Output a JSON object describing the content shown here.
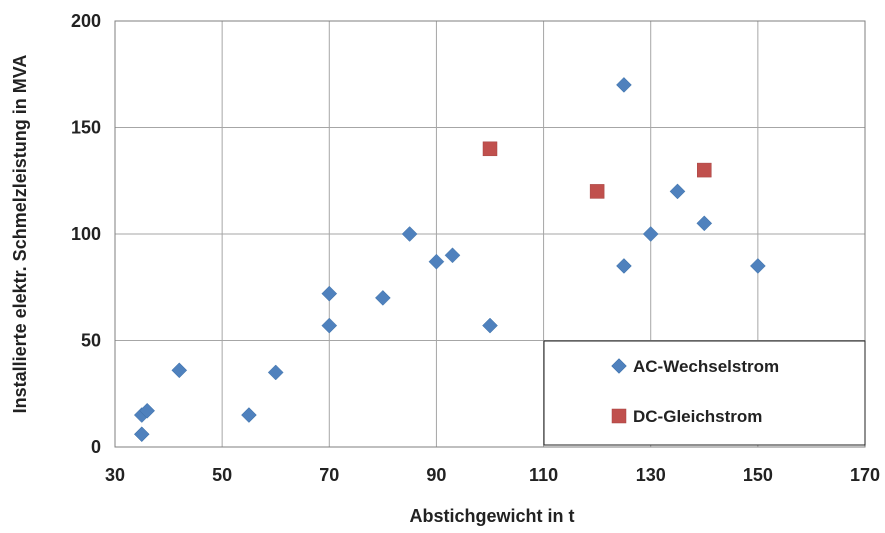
{
  "chart_data": {
    "type": "scatter",
    "title": "",
    "xlabel": "Abstichgewicht in t",
    "ylabel": "Installierte elektr. Schmelzleistung in MVA",
    "xlim": [
      30,
      170
    ],
    "ylim": [
      0,
      200
    ],
    "xticks": [
      "30",
      "50",
      "70",
      "90",
      "110",
      "130",
      "150",
      "170"
    ],
    "yticks": [
      "0",
      "50",
      "100",
      "150",
      "200"
    ],
    "grid": true,
    "legend_position": "bottom-right",
    "series": [
      {
        "name": "AC-Wechselstrom",
        "color": "#4f81bd",
        "marker": "diamond",
        "points": [
          [
            35,
            6
          ],
          [
            35,
            15
          ],
          [
            36,
            17
          ],
          [
            42,
            36
          ],
          [
            55,
            15
          ],
          [
            60,
            35
          ],
          [
            70,
            57
          ],
          [
            70,
            72
          ],
          [
            80,
            70
          ],
          [
            85,
            100
          ],
          [
            90,
            87
          ],
          [
            93,
            90
          ],
          [
            100,
            57
          ],
          [
            125,
            170
          ],
          [
            125,
            85
          ],
          [
            130,
            100
          ],
          [
            135,
            120
          ],
          [
            140,
            105
          ],
          [
            150,
            85
          ]
        ]
      },
      {
        "name": "DC-Gleichstrom",
        "color": "#c0504d",
        "marker": "square",
        "points": [
          [
            100,
            140
          ],
          [
            120,
            120
          ],
          [
            140,
            130
          ]
        ]
      }
    ]
  }
}
